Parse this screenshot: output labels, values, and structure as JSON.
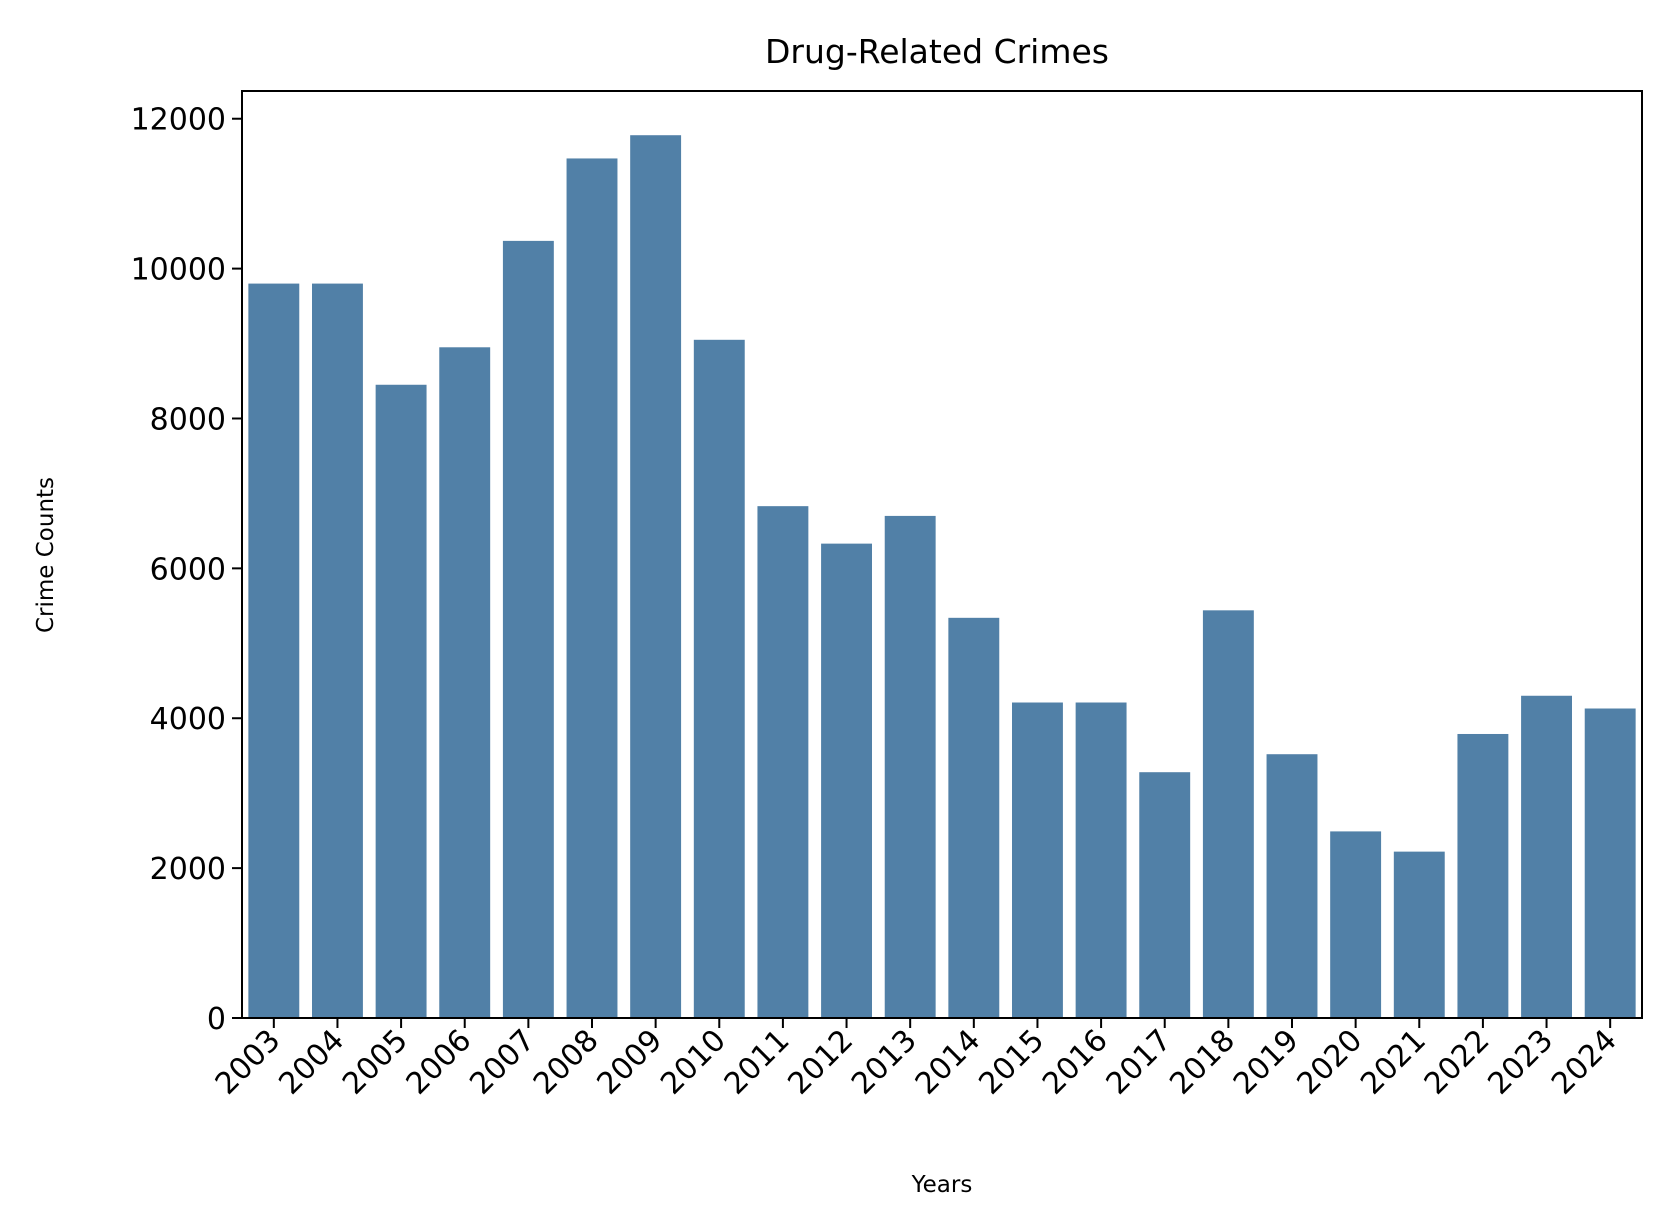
{
  "chart_data": {
    "type": "bar",
    "title": "Drug-Related Crimes",
    "xlabel": "Years",
    "ylabel": "Crime Counts",
    "categories": [
      "2003",
      "2004",
      "2005",
      "2006",
      "2007",
      "2008",
      "2009",
      "2010",
      "2011",
      "2012",
      "2013",
      "2014",
      "2015",
      "2016",
      "2017",
      "2018",
      "2019",
      "2020",
      "2021",
      "2022",
      "2023",
      "2024"
    ],
    "values": [
      9800,
      9800,
      8450,
      8950,
      10370,
      11470,
      11780,
      9050,
      6830,
      6330,
      6700,
      5340,
      4210,
      4210,
      3280,
      5440,
      3520,
      2490,
      2220,
      3790,
      4300,
      4130
    ],
    "ylim": [
      0,
      12370
    ],
    "yticks": [
      0,
      2000,
      4000,
      6000,
      8000,
      10000,
      12000
    ],
    "bar_color": "#5180a7",
    "grid": false,
    "legend": "none"
  }
}
